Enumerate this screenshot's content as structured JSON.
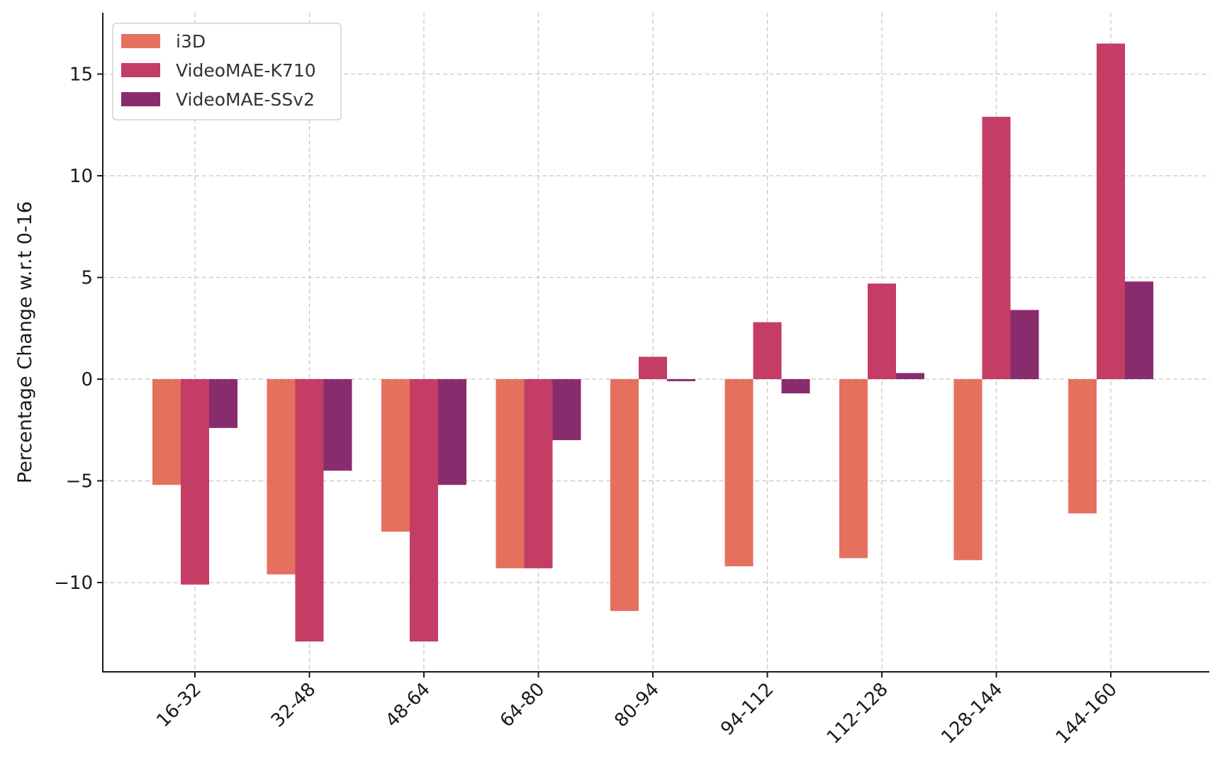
{
  "chart_data": {
    "type": "bar",
    "title": "",
    "xlabel": "",
    "ylabel": "Percentage Change w.r.t 0-16",
    "categories": [
      "16-32",
      "32-48",
      "48-64",
      "64-80",
      "80-94",
      "94-112",
      "112-128",
      "128-144",
      "144-160"
    ],
    "series": [
      {
        "name": "i3D",
        "color": "#e5705e",
        "values": [
          -5.2,
          -9.6,
          -7.5,
          -9.3,
          -11.4,
          -9.2,
          -8.8,
          -8.9,
          -6.6
        ]
      },
      {
        "name": "VideoMAE-K710",
        "color": "#c33d65",
        "values": [
          -10.1,
          -12.9,
          -12.9,
          -9.3,
          1.1,
          2.8,
          4.7,
          12.9,
          16.5
        ]
      },
      {
        "name": "VideoMAE-SSv2",
        "color": "#882c6e",
        "values": [
          -2.4,
          -4.5,
          -5.2,
          -3.0,
          -0.1,
          -0.7,
          0.3,
          3.4,
          4.8
        ]
      }
    ],
    "yticks": [
      -10,
      -5,
      0,
      5,
      10,
      15
    ],
    "ytick_labels": [
      "−10",
      "−5",
      "0",
      "5",
      "10",
      "15"
    ],
    "ylim": [
      -14.3,
      18.0
    ],
    "grid": true,
    "legend_position": "top-left"
  }
}
